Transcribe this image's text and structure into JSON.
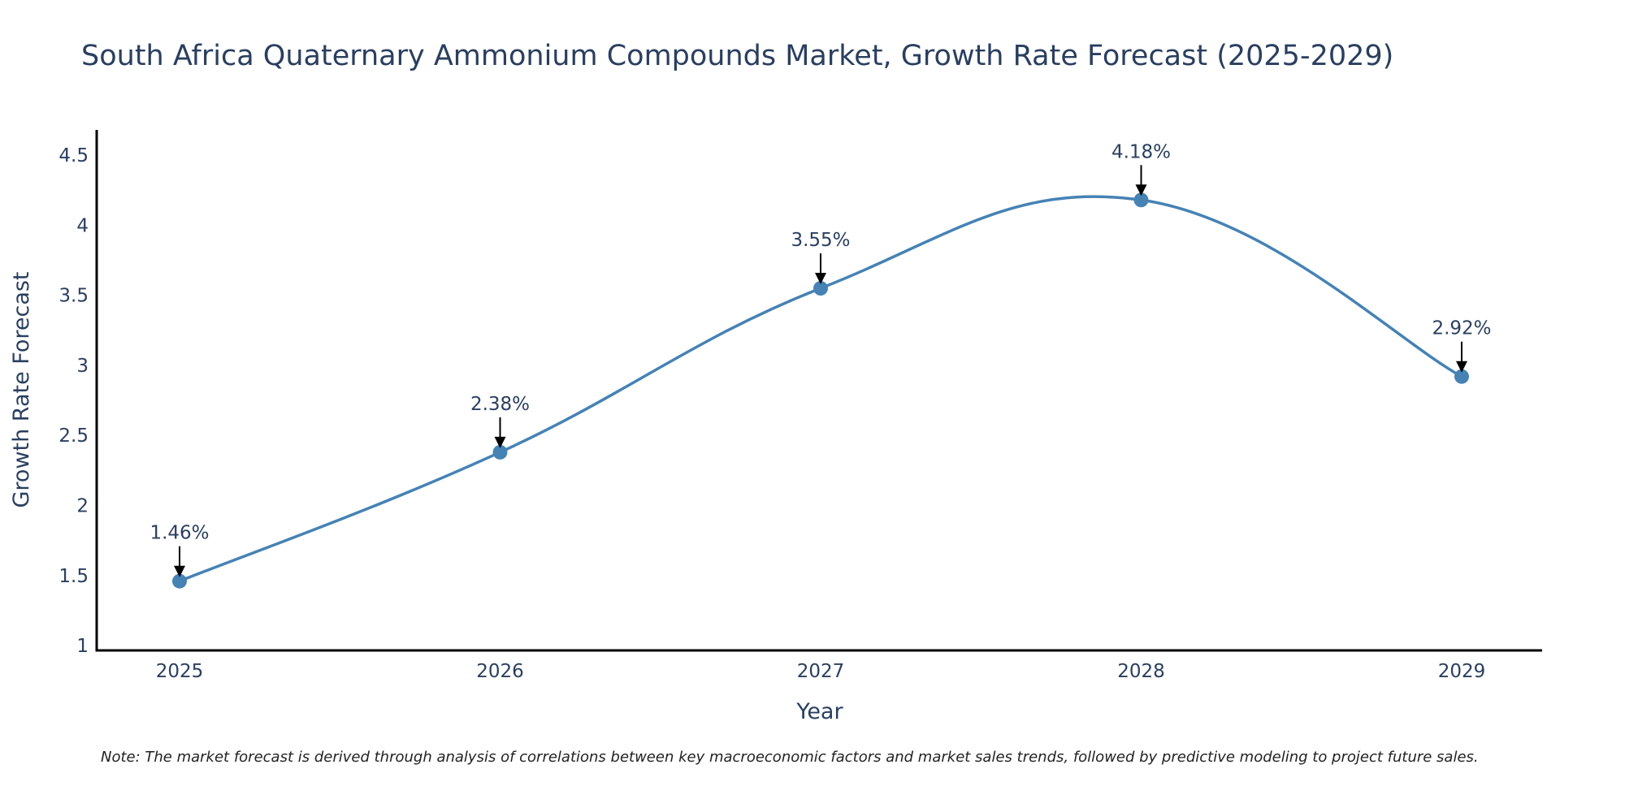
{
  "chart_data": {
    "type": "line",
    "title": "South Africa Quaternary Ammonium Compounds Market, Growth Rate Forecast (2025-2029)",
    "xlabel": "Year",
    "ylabel": "Growth Rate Forecast",
    "categories": [
      "2025",
      "2026",
      "2027",
      "2028",
      "2029"
    ],
    "series": [
      {
        "name": "Growth Rate Forecast",
        "values": [
          1.46,
          2.38,
          3.55,
          4.18,
          2.92
        ],
        "labels": [
          "1.46%",
          "2.38%",
          "3.55%",
          "4.18%",
          "2.92%"
        ]
      }
    ],
    "ylim": [
      0.96,
      4.68
    ],
    "yticks": [
      1,
      1.5,
      2,
      2.5,
      3,
      3.5,
      4,
      4.5
    ],
    "ytick_labels": [
      "1",
      "1.5",
      "2",
      "2.5",
      "3",
      "3.5",
      "4",
      "4.5"
    ],
    "grid": false,
    "line_color": "#4682b4",
    "marker_color": "#4682b4",
    "note": "Note: The market forecast is derived through analysis of correlations between key macroeconomic factors and market sales trends, followed by predictive modeling to project future sales."
  }
}
